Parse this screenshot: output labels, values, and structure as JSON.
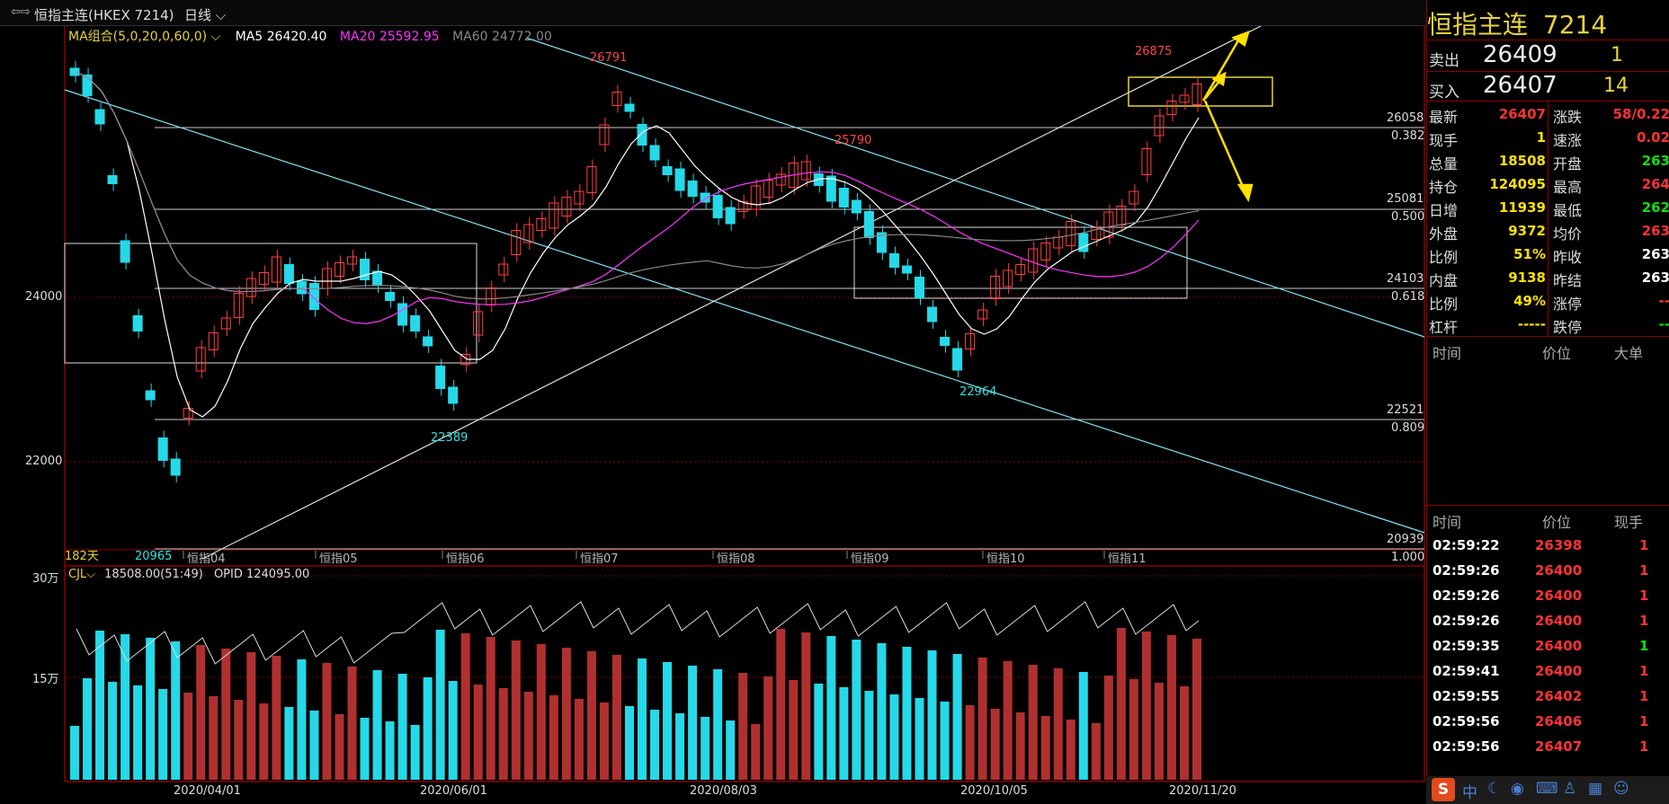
{
  "window": {
    "title": "恒指主连(HKEX 7214)",
    "period": "日线",
    "nav_icon": "split-arrows-icon"
  },
  "indicators": {
    "ma_group": "MA组合(5,0,20,0,60,0)",
    "ma5": "MA5 26420.40",
    "ma20": "MA20 25592.95",
    "ma60": "MA60 24772.00",
    "colors": {
      "ma5": "#ffffff",
      "ma20": "#ff00ff",
      "ma60": "#888888"
    }
  },
  "price_axis": {
    "labels": [
      "24000",
      "22000"
    ]
  },
  "fib_levels": [
    {
      "price": "26058",
      "ratio": "0.382"
    },
    {
      "price": "25081",
      "ratio": "0.500"
    },
    {
      "price": "24103",
      "ratio": "0.618"
    },
    {
      "price": "22521",
      "ratio": "0.809"
    },
    {
      "price": "20939",
      "ratio": "1.000"
    }
  ],
  "price_annotations": [
    "26791",
    "25790",
    "26875",
    "22389",
    "22964",
    "20965"
  ],
  "day_count": "182天",
  "month_labels": [
    "恒指04",
    "恒指05",
    "恒指06",
    "恒指07",
    "恒指08",
    "恒指09",
    "恒指10",
    "恒指11"
  ],
  "volume": {
    "header": "CJL",
    "value": "18508.00(51:49)",
    "opid": "OPID 124095.00",
    "axis": [
      "30万",
      "15万"
    ]
  },
  "date_axis": [
    "2020/04/01",
    "2020/06/01",
    "2020/08/03",
    "2020/10/05",
    "2020/11/20"
  ],
  "quote": {
    "name": "恒指主连",
    "code": "7214",
    "sell": {
      "label": "卖出",
      "price": "26409",
      "qty": "1"
    },
    "buy": {
      "label": "买入",
      "price": "26407",
      "qty": "14"
    },
    "left_fields": [
      {
        "label": "最新",
        "value": "26407",
        "color": "red"
      },
      {
        "label": "现手",
        "value": "1",
        "color": "yel"
      },
      {
        "label": "总量",
        "value": "18508",
        "color": "yel"
      },
      {
        "label": "持仓",
        "value": "124095",
        "color": "yel"
      },
      {
        "label": "日增",
        "value": "11939",
        "color": "yel"
      },
      {
        "label": "外盘",
        "value": "9372",
        "color": "yel"
      },
      {
        "label": "比例",
        "value": "51%",
        "color": "yel"
      },
      {
        "label": "内盘",
        "value": "9138",
        "color": "yel"
      },
      {
        "label": "比例",
        "value": "49%",
        "color": "yel"
      },
      {
        "label": "杠杆",
        "value": "-----",
        "color": "yel"
      }
    ],
    "right_fields": [
      {
        "label": "涨跌",
        "value": "58/0.22",
        "color": "red"
      },
      {
        "label": "速涨",
        "value": "0.02",
        "color": "red"
      },
      {
        "label": "开盘",
        "value": "263",
        "color": "grn"
      },
      {
        "label": "最高",
        "value": "264",
        "color": "red"
      },
      {
        "label": "最低",
        "value": "262",
        "color": "grn"
      },
      {
        "label": "均价",
        "value": "263",
        "color": "red"
      },
      {
        "label": "昨收",
        "value": "263",
        "color": "wht"
      },
      {
        "label": "昨结",
        "value": "263",
        "color": "wht"
      },
      {
        "label": "涨停",
        "value": "--",
        "color": "red"
      },
      {
        "label": "跌停",
        "value": "--",
        "color": "grn"
      }
    ]
  },
  "big_orders": {
    "headers": [
      "时间",
      "价位",
      "大单"
    ]
  },
  "ticks": {
    "headers": [
      "时间",
      "价位",
      "现手"
    ],
    "rows": [
      {
        "time": "02:59:22",
        "price": "26398",
        "qty": "1",
        "qcolor": "red"
      },
      {
        "time": "02:59:26",
        "price": "26400",
        "qty": "1",
        "qcolor": "red"
      },
      {
        "time": "02:59:26",
        "price": "26400",
        "qty": "1",
        "qcolor": "red"
      },
      {
        "time": "02:59:26",
        "price": "26400",
        "qty": "1",
        "qcolor": "red"
      },
      {
        "time": "02:59:35",
        "price": "26400",
        "qty": "1",
        "qcolor": "grn"
      },
      {
        "time": "02:59:41",
        "price": "26400",
        "qty": "1",
        "qcolor": "red"
      },
      {
        "time": "02:59:55",
        "price": "26402",
        "qty": "1",
        "qcolor": "red"
      },
      {
        "time": "02:59:56",
        "price": "26406",
        "qty": "1",
        "qcolor": "red"
      },
      {
        "time": "02:59:56",
        "price": "26407",
        "qty": "1",
        "qcolor": "red"
      }
    ]
  },
  "taskbar": {
    "ime": "中",
    "icons": [
      "sogou-icon",
      "moon-icon",
      "mic-icon",
      "keyboard-icon",
      "shirt-icon",
      "grid-icon",
      "person-icon"
    ]
  }
}
